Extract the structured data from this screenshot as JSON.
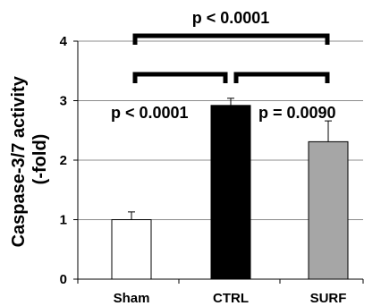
{
  "chart_data": {
    "type": "bar",
    "ylabel_line1": "Caspase-3/7 activity",
    "ylabel_line2": "(-fold)",
    "ylim": [
      0,
      4
    ],
    "yticks": [
      0,
      1,
      2,
      3,
      4
    ],
    "grid": true,
    "categories": [
      "Sham",
      "CTRL",
      "SURF"
    ],
    "values": [
      1.0,
      2.92,
      2.31
    ],
    "errors": [
      0.13,
      0.12,
      0.35
    ],
    "colors": [
      "#ffffff",
      "#000000",
      "#a6a6a6"
    ],
    "significance": [
      {
        "from": 0,
        "to": 2,
        "label": "p < 0.0001"
      },
      {
        "from": 0,
        "to": 1,
        "label": "p < 0.0001"
      },
      {
        "from": 1,
        "to": 2,
        "label": "p = 0.0090"
      }
    ]
  }
}
